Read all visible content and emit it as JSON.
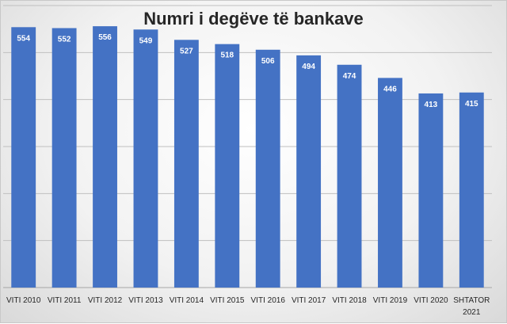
{
  "chart_data": {
    "type": "bar",
    "title": "Numri i degëve të bankave",
    "xlabel": "",
    "ylabel": "",
    "categories": [
      "VITI 2010",
      "VITI 2011",
      "VITI 2012",
      "VITI 2013",
      "VITI 2014",
      "VITI 2015",
      "VITI 2016",
      "VITI 2017",
      "VITI 2018",
      "VITI 2019",
      "VITI 2020",
      "SHTATOR 2021"
    ],
    "values": [
      554,
      552,
      556,
      549,
      527,
      518,
      506,
      494,
      474,
      446,
      413,
      415
    ],
    "ylim": [
      0,
      600
    ],
    "grid": true,
    "data_labels": true,
    "bar_color": "#4472c4",
    "label_color": "#ffffff",
    "legend": "none"
  }
}
